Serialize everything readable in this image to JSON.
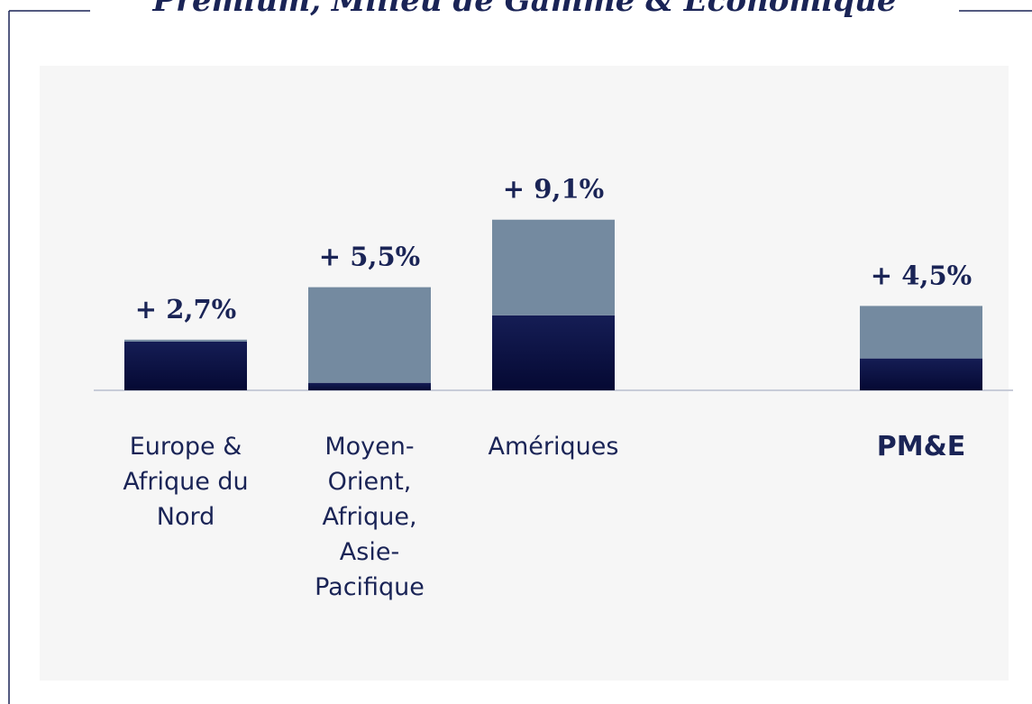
{
  "chart_data": {
    "type": "stacked-bar",
    "title": "Premium, Milieu de Gamme & Économique",
    "categories": [
      "Europe & Afrique du Nord",
      "Moyen-Orient, Afrique, Asie-Pacifique",
      "Amériques",
      "PM&E"
    ],
    "series": [
      {
        "color": "#0b1140",
        "values": [
          2.6,
          0.4,
          4.0,
          1.7
        ]
      },
      {
        "color": "#748aa0",
        "values": [
          0.1,
          5.1,
          5.1,
          2.8
        ]
      }
    ],
    "totals": [
      2.7,
      5.5,
      9.1,
      4.5
    ],
    "total_labels": [
      "+ 2,7%",
      "+ 5,5%",
      "+ 9,1%",
      "+ 4,5%"
    ],
    "ylim": [
      0,
      10
    ]
  }
}
